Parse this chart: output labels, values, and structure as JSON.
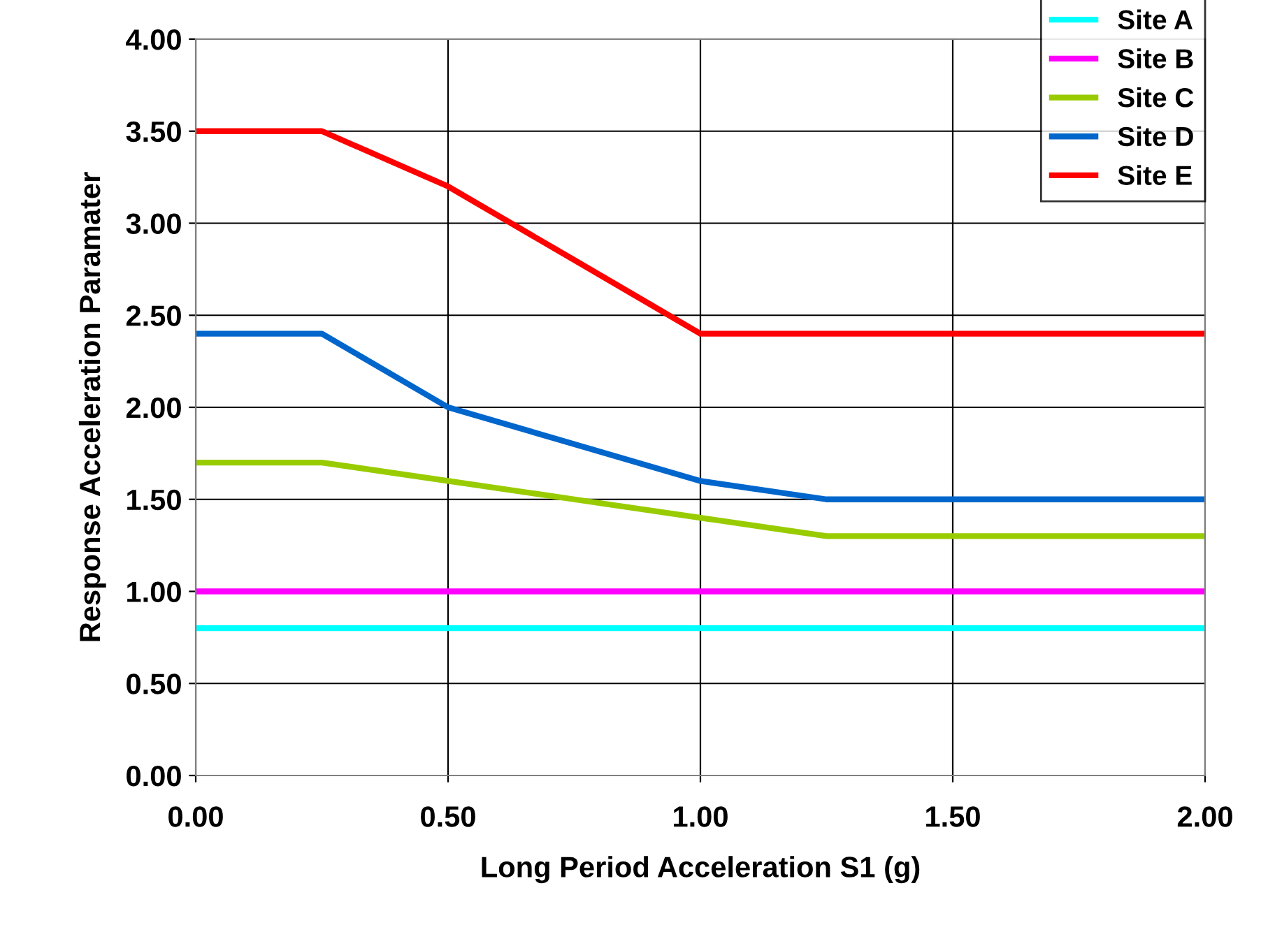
{
  "chart_data": {
    "type": "line",
    "xlabel": "Long Period Acceleration S1 (g)",
    "ylabel": "Response Acceleration Paramater",
    "x": [
      0,
      0.25,
      0.5,
      0.75,
      1.0,
      1.25,
      2.0
    ],
    "series": [
      {
        "name": "Site A",
        "color": "#00ffff",
        "values": [
          0.8,
          0.8,
          0.8,
          0.8,
          0.8,
          0.8,
          0.8
        ]
      },
      {
        "name": "Site B",
        "color": "#ff00ff",
        "values": [
          1.0,
          1.0,
          1.0,
          1.0,
          1.0,
          1.0,
          1.0
        ]
      },
      {
        "name": "Site C",
        "color": "#99cc00",
        "values": [
          1.7,
          1.7,
          1.6,
          1.5,
          1.4,
          1.3,
          1.3
        ]
      },
      {
        "name": "Site D",
        "color": "#0066cc",
        "values": [
          2.4,
          2.4,
          2.0,
          1.8,
          1.6,
          1.5,
          1.5
        ]
      },
      {
        "name": "Site E",
        "color": "#ff0000",
        "values": [
          3.5,
          3.5,
          3.2,
          2.8,
          2.4,
          2.4,
          2.4
        ]
      }
    ],
    "xlim": [
      0,
      2
    ],
    "xticks": [
      {
        "value": 0,
        "label": "0.00"
      },
      {
        "value": 0.5,
        "label": "0.50"
      },
      {
        "value": 1,
        "label": "1.00"
      },
      {
        "value": 1.5,
        "label": "1.50"
      },
      {
        "value": 2,
        "label": "2.00"
      }
    ],
    "ylim": [
      0,
      4
    ],
    "yticks": [
      {
        "value": 0,
        "label": "0.00"
      },
      {
        "value": 0.5,
        "label": "0.50"
      },
      {
        "value": 1,
        "label": "1.00"
      },
      {
        "value": 1.5,
        "label": "1.50"
      },
      {
        "value": 2,
        "label": "2.00"
      },
      {
        "value": 2.5,
        "label": "2.50"
      },
      {
        "value": 3,
        "label": "3.00"
      },
      {
        "value": 3.5,
        "label": "3.50"
      },
      {
        "value": 4,
        "label": "4.00"
      }
    ],
    "grid": true,
    "legend": "top right",
    "marker": "none",
    "line_style": "solid"
  }
}
